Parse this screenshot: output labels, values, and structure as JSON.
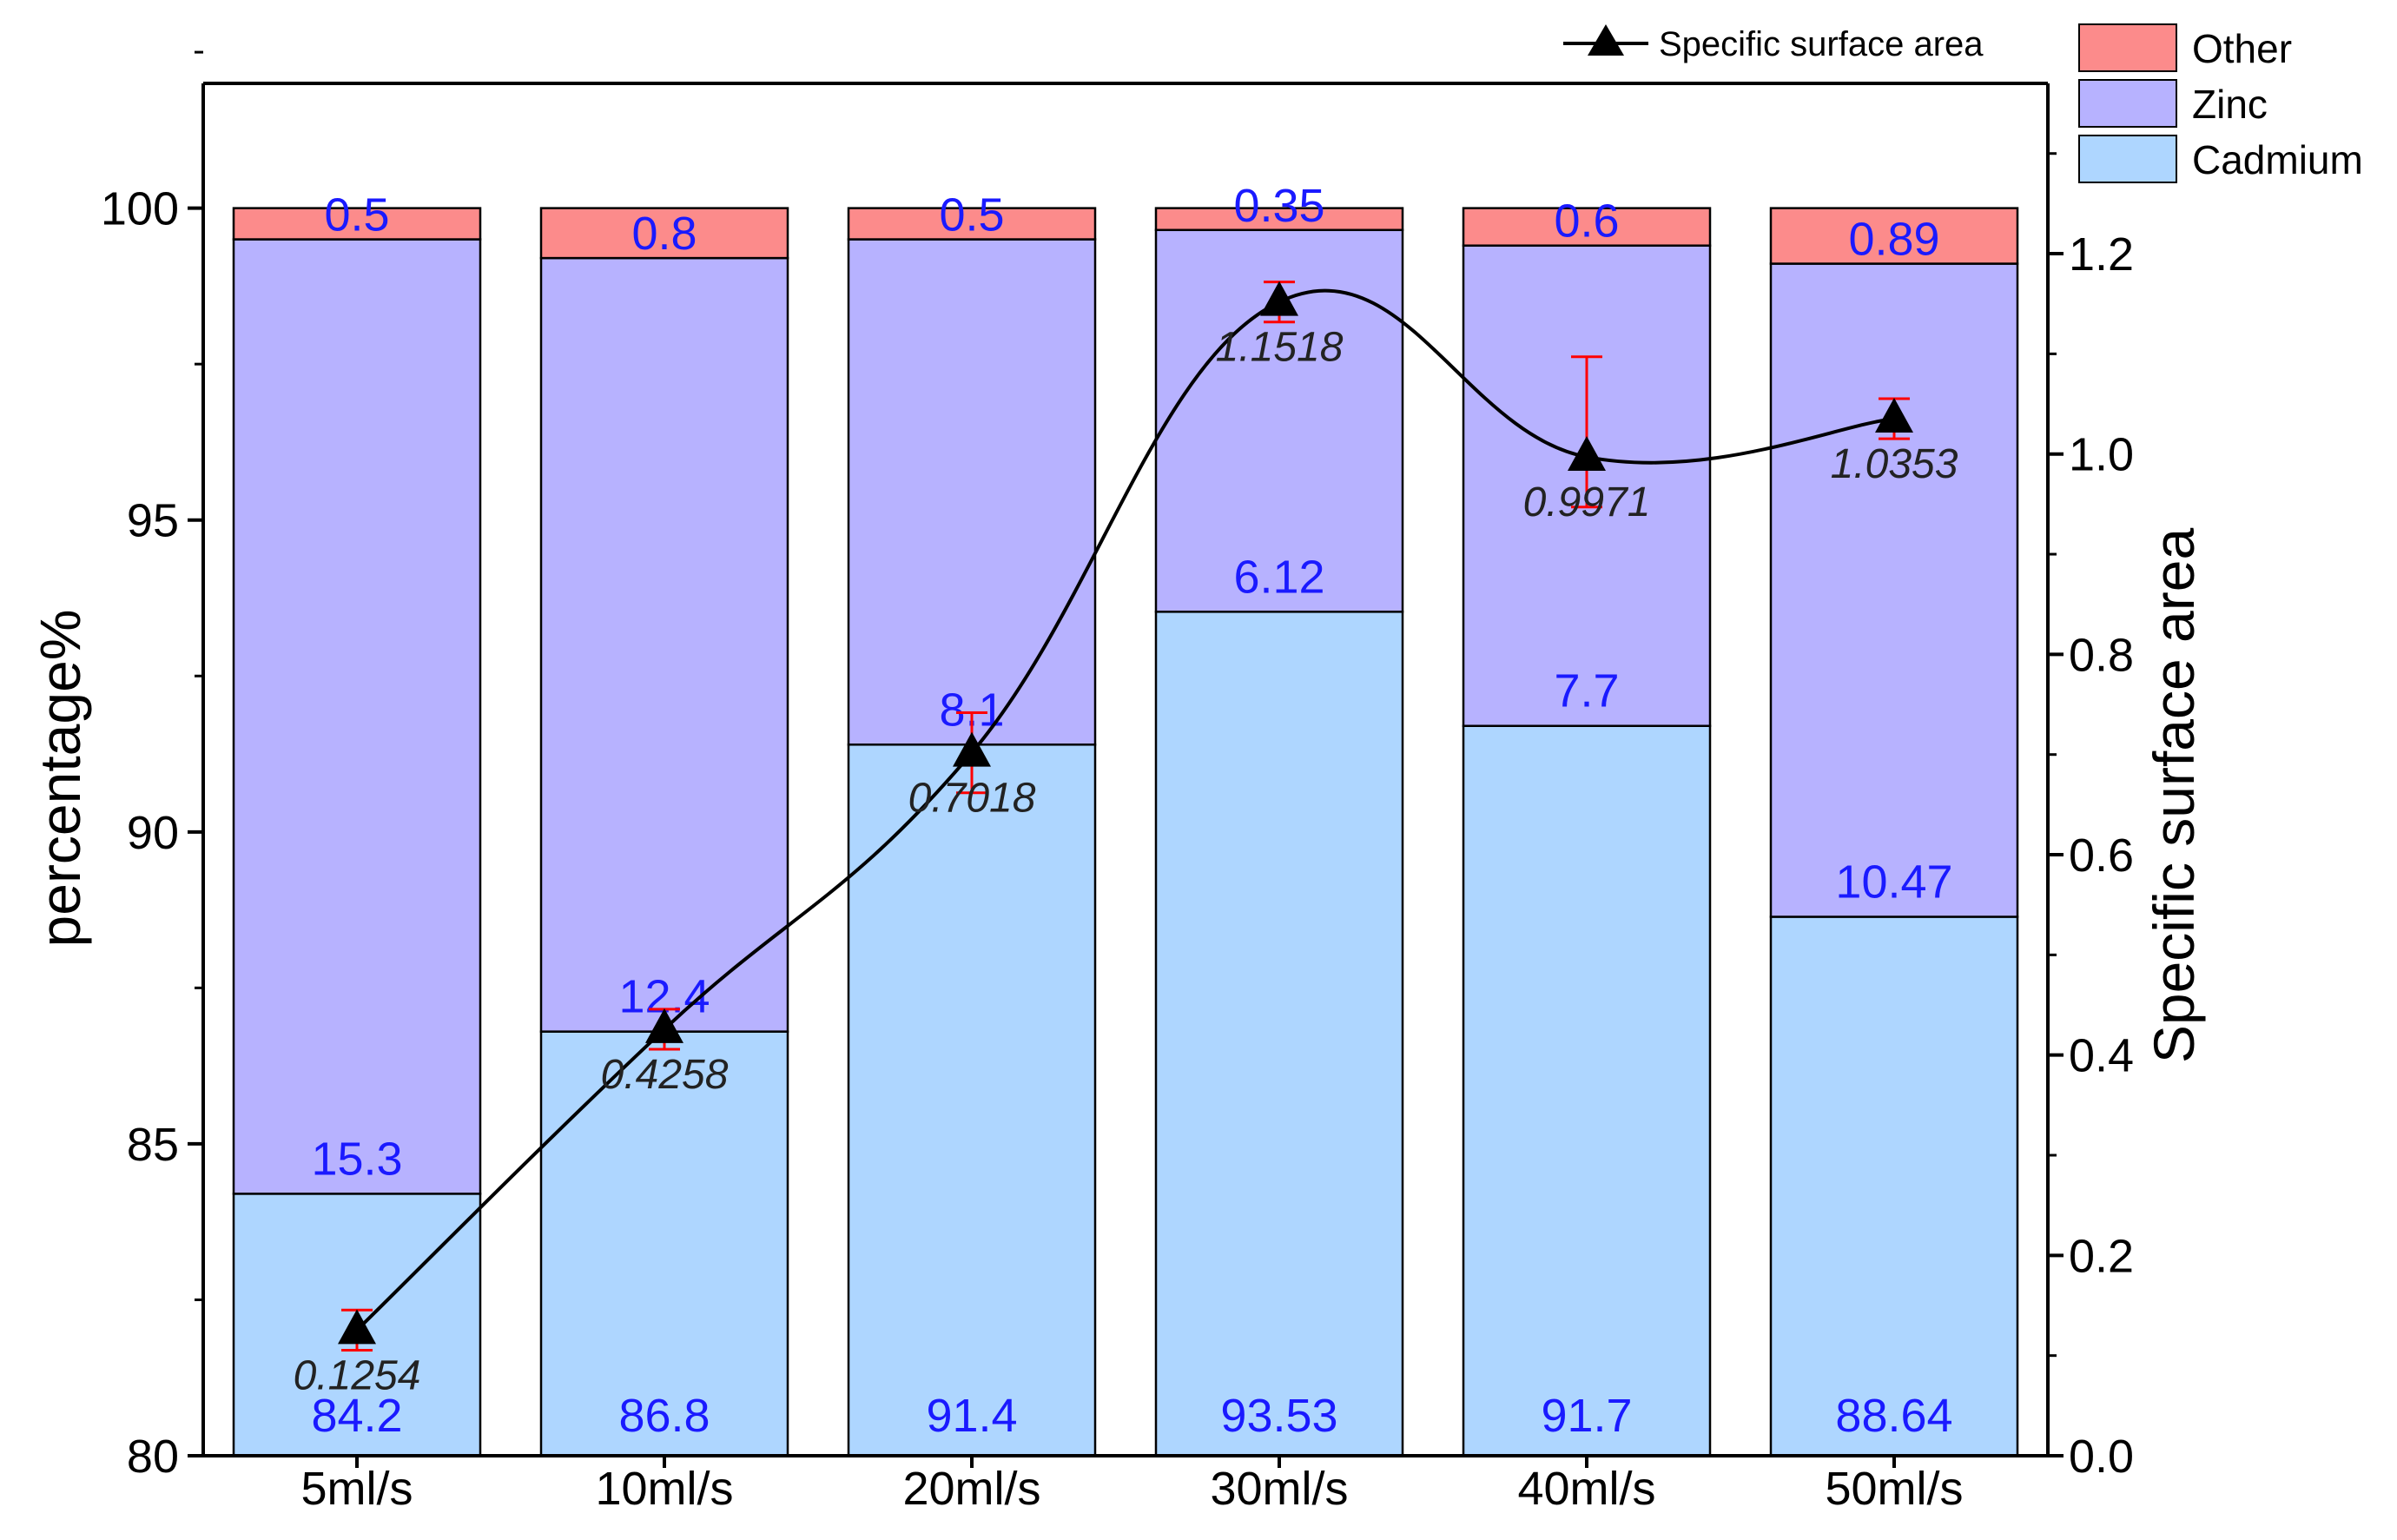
{
  "colors": {
    "cadmium": "#aed6ff",
    "zinc": "#b7b2ff",
    "other": "#fc8b8b",
    "data_label": "#1a1aff",
    "line": "#000000",
    "error_bar": "#ff0000"
  },
  "chart_data": {
    "type": "bar",
    "stacked": true,
    "categories": [
      "5ml/s",
      "10ml/s",
      "20ml/s",
      "30ml/s",
      "40ml/s",
      "50ml/s"
    ],
    "series": [
      {
        "name": "Cadmium",
        "key": "cadmium",
        "values": [
          84.2,
          86.8,
          91.4,
          93.53,
          91.7,
          88.64
        ],
        "labels": [
          "84.2",
          "86.8",
          "91.4",
          "93.53",
          "91.7",
          "88.64"
        ]
      },
      {
        "name": "Zinc",
        "key": "zinc",
        "values": [
          15.3,
          12.4,
          8.1,
          6.12,
          7.7,
          10.47
        ],
        "labels": [
          "15.3",
          "12.4",
          "8.1",
          "6.12",
          "7.7",
          "10.47"
        ]
      },
      {
        "name": "Other",
        "key": "other",
        "values": [
          0.5,
          0.8,
          0.5,
          0.35,
          0.6,
          0.89
        ],
        "labels": [
          "0.5",
          "0.8",
          "0.5",
          "0.35",
          "0.6",
          "0.89"
        ]
      }
    ],
    "line_series": {
      "name": "Specific surface area",
      "axis": "right",
      "values": [
        0.1254,
        0.4258,
        0.7018,
        1.1518,
        0.9971,
        1.0353
      ],
      "labels": [
        "0.1254",
        "0.4258",
        "0.7018",
        "1.1518",
        "0.9971",
        "1.0353"
      ],
      "error_upper": [
        0.02,
        0.02,
        0.04,
        0.02,
        0.1,
        0.02
      ],
      "error_lower": [
        0.02,
        0.02,
        0.04,
        0.02,
        0.05,
        0.02
      ]
    },
    "ylabel": "percentage%",
    "ylabel_right": "Specific surface area",
    "ylim": [
      80,
      102
    ],
    "ylim_right": [
      0,
      1.37
    ],
    "yticks": [
      "80",
      "85",
      "90",
      "95",
      "100"
    ],
    "yticks_right": [
      "0.0",
      "0.2",
      "0.4",
      "0.6",
      "0.8",
      "1.0",
      "1.2"
    ],
    "legend": {
      "position": "top-right",
      "line_entry": "Specific surface area",
      "entries": [
        "Other",
        "Zinc",
        "Cadmium"
      ]
    },
    "grid": false
  }
}
